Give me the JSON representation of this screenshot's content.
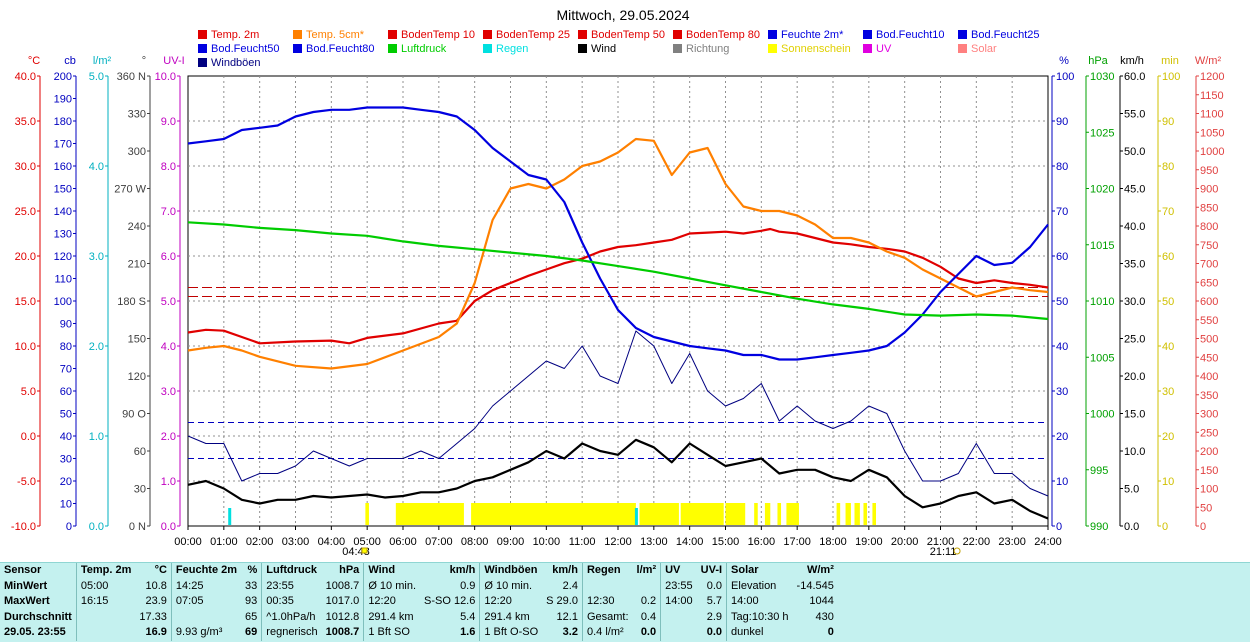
{
  "title": "Mittwoch, 29.05.2024",
  "legend": [
    {
      "label": "Temp. 2m",
      "color": "#e00000"
    },
    {
      "label": "Temp. 5cm*",
      "color": "#ff8000"
    },
    {
      "label": "BodenTemp 10",
      "color": "#e00000"
    },
    {
      "label": "BodenTemp 25",
      "color": "#e00000"
    },
    {
      "label": "BodenTemp 50",
      "color": "#e00000"
    },
    {
      "label": "BodenTemp 80",
      "color": "#e00000"
    },
    {
      "label": "Feuchte 2m*",
      "color": "#0000e0"
    },
    {
      "label": "Bod.Feucht10",
      "color": "#0000e0"
    },
    {
      "label": "Bod.Feucht25",
      "color": "#0000e0"
    },
    {
      "label": "Bod.Feucht50",
      "color": "#0000e0"
    },
    {
      "label": "Bod.Feucht80",
      "color": "#0000e0"
    },
    {
      "label": "Luftdruck",
      "color": "#00cc00"
    },
    {
      "label": "Regen",
      "color": "#00e0e0"
    },
    {
      "label": "Wind",
      "color": "#000000"
    },
    {
      "label": "Richtung",
      "color": "#808080"
    },
    {
      "label": "Sonnenschein",
      "color": "#ffff00"
    },
    {
      "label": "UV",
      "color": "#e000e0"
    },
    {
      "label": "Solar",
      "color": "#ff8080"
    },
    {
      "label": "Windböen",
      "color": "#000080"
    }
  ],
  "axes_left": [
    {
      "unit": "°C",
      "color": "#e00000",
      "ticks": [
        "40.0",
        "35.0",
        "30.0",
        "25.0",
        "20.0",
        "15.0",
        "10.0",
        "5.0",
        "0.0",
        "-5.0",
        "-10.0"
      ]
    },
    {
      "unit": "cb",
      "color": "#0000c0",
      "ticks": [
        "200",
        "190",
        "180",
        "170",
        "160",
        "150",
        "140",
        "130",
        "120",
        "110",
        "100",
        "90",
        "80",
        "70",
        "60",
        "50",
        "40",
        "30",
        "20",
        "10",
        "0"
      ]
    },
    {
      "unit": "l/m²",
      "color": "#00b0c0",
      "ticks": [
        "5.0",
        "4.0",
        "3.0",
        "2.0",
        "1.0",
        "0.0"
      ]
    },
    {
      "unit": "°",
      "color": "#404040",
      "ticks": [
        "360 N",
        "330",
        "300",
        "270 W",
        "240",
        "210",
        "180 S",
        "150",
        "120",
        "90 O",
        "60",
        "30",
        "0 N"
      ]
    },
    {
      "unit": "UV-I",
      "color": "#c000c0",
      "ticks": [
        "10.0",
        "9.0",
        "8.0",
        "7.0",
        "6.0",
        "5.0",
        "4.0",
        "3.0",
        "2.0",
        "1.0",
        "0.0"
      ]
    }
  ],
  "axes_right": [
    {
      "unit": "%",
      "color": "#0000c0",
      "ticks": [
        "100",
        "90",
        "80",
        "70",
        "60",
        "50",
        "40",
        "30",
        "20",
        "10",
        "0"
      ]
    },
    {
      "unit": "hPa",
      "color": "#00a000",
      "ticks": [
        "1030",
        "1025",
        "1020",
        "1015",
        "1010",
        "1005",
        "1000",
        "995",
        "990"
      ]
    },
    {
      "unit": "km/h",
      "color": "#000000",
      "ticks": [
        "60.0",
        "55.0",
        "50.0",
        "45.0",
        "40.0",
        "35.0",
        "30.0",
        "25.0",
        "20.0",
        "15.0",
        "10.0",
        "5.0",
        "0.0"
      ]
    },
    {
      "unit": "min",
      "color": "#d0c000",
      "ticks": [
        "100",
        "90",
        "80",
        "70",
        "60",
        "50",
        "40",
        "30",
        "20",
        "10",
        "0"
      ]
    },
    {
      "unit": "W/m²",
      "color": "#e04040",
      "ticks": [
        "1200",
        "1150",
        "1100",
        "1050",
        "1000",
        "950",
        "900",
        "850",
        "800",
        "750",
        "700",
        "650",
        "600",
        "550",
        "500",
        "450",
        "400",
        "350",
        "300",
        "250",
        "200",
        "150",
        "100",
        "50",
        "0"
      ]
    }
  ],
  "x_ticks": [
    "00:00",
    "01:00",
    "02:00",
    "03:00",
    "04:00",
    "05:00",
    "06:00",
    "07:00",
    "08:00",
    "09:00",
    "10:00",
    "11:00",
    "12:00",
    "13:00",
    "14:00",
    "15:00",
    "16:00",
    "17:00",
    "18:00",
    "19:00",
    "20:00",
    "21:00",
    "22:00",
    "23:00",
    "24:00"
  ],
  "sunrise": "04:48",
  "sunset": "21:11",
  "chart_data": {
    "type": "line",
    "title": "Mittwoch, 29.05.2024",
    "x_unit": "hours",
    "xlim": [
      0,
      24
    ],
    "series": [
      {
        "name": "Temp. 2m",
        "color": "#e00000",
        "unit": "°C",
        "x": [
          0,
          0.5,
          1,
          1.5,
          2,
          3,
          4,
          4.5,
          5,
          6,
          7,
          7.5,
          8,
          8.5,
          9,
          9.5,
          10,
          10.5,
          11,
          11.5,
          12,
          12.5,
          13,
          13.5,
          14,
          14.5,
          15,
          15.5,
          16,
          16.25,
          16.5,
          17,
          17.5,
          18,
          18.5,
          19,
          19.5,
          20,
          20.5,
          21,
          21.5,
          22,
          22.5,
          23,
          23.5,
          24
        ],
        "y": [
          11.5,
          11.8,
          11.7,
          11.0,
          10.3,
          10.5,
          10.6,
          10.3,
          10.9,
          11.4,
          12.5,
          12.8,
          15.0,
          16.2,
          17.0,
          17.8,
          18.5,
          19.2,
          19.7,
          20.5,
          21.0,
          21.2,
          21.5,
          21.8,
          22.5,
          22.6,
          22.7,
          22.5,
          22.8,
          23.0,
          22.7,
          22.5,
          22.0,
          21.5,
          21.3,
          21.0,
          20.8,
          20.5,
          19.8,
          18.8,
          17.5,
          17.0,
          17.3,
          17.0,
          16.8,
          16.5
        ]
      },
      {
        "name": "Temp. 5cm*",
        "color": "#ff8000",
        "unit": "°C",
        "x": [
          0,
          0.5,
          1,
          1.5,
          2,
          3,
          4,
          5,
          6,
          7,
          7.5,
          8,
          8.5,
          9,
          9.5,
          10,
          10.5,
          11,
          11.5,
          12,
          12.5,
          13,
          13.5,
          14,
          14.5,
          15,
          15.5,
          16,
          16.5,
          17,
          17.5,
          18,
          18.5,
          19,
          19.5,
          20,
          20.5,
          21,
          21.5,
          22,
          22.5,
          23,
          23.5,
          24
        ],
        "y": [
          9.5,
          9.8,
          10.0,
          9.5,
          8.8,
          7.8,
          7.5,
          8.0,
          9.5,
          11.0,
          12.5,
          17.0,
          24.0,
          27.5,
          28.0,
          27.5,
          28.5,
          30.0,
          30.5,
          31.5,
          33.0,
          32.8,
          29.0,
          31.5,
          32.0,
          28.0,
          25.5,
          25.0,
          25.0,
          24.5,
          23.5,
          22.0,
          22.0,
          21.5,
          20.5,
          19.8,
          18.5,
          17.5,
          16.5,
          15.5,
          16.0,
          16.5,
          16.2,
          16.0
        ]
      },
      {
        "name": "Feuchte 2m*",
        "color": "#0000e0",
        "unit": "%",
        "x": [
          0,
          0.5,
          1,
          1.5,
          2,
          2.5,
          3,
          3.5,
          4,
          4.5,
          5,
          5.5,
          6,
          6.5,
          7,
          7.5,
          8,
          8.5,
          9,
          9.5,
          10,
          10.5,
          11,
          11.5,
          12,
          12.5,
          13,
          13.5,
          14,
          14.5,
          15,
          15.5,
          16,
          16.5,
          17,
          17.5,
          18,
          18.5,
          19,
          19.5,
          20,
          20.5,
          21,
          21.5,
          22,
          22.5,
          23,
          23.5,
          24
        ],
        "y": [
          85,
          85.5,
          86,
          88,
          88.5,
          89,
          91,
          92,
          92.5,
          92.5,
          93,
          93,
          93,
          92.5,
          92,
          91,
          88,
          84,
          81,
          78,
          77,
          72,
          63,
          55,
          48,
          44,
          42,
          41,
          40,
          39.5,
          39,
          38,
          38,
          37,
          37,
          37.5,
          38,
          38.5,
          39,
          40,
          43,
          47,
          52,
          56,
          60,
          58,
          58.5,
          62,
          67
        ]
      },
      {
        "name": "Luftdruck",
        "color": "#00cc00",
        "unit": "hPa",
        "x": [
          0,
          1,
          2,
          3,
          4,
          5,
          6,
          7,
          8,
          9,
          10,
          11,
          12,
          13,
          14,
          15,
          16,
          17,
          18,
          19,
          20,
          21,
          22,
          23,
          24
        ],
        "y": [
          1017.0,
          1016.8,
          1016.5,
          1016.3,
          1016.0,
          1015.8,
          1015.3,
          1014.9,
          1014.6,
          1014.3,
          1014.0,
          1013.6,
          1013.1,
          1012.6,
          1012.0,
          1011.4,
          1010.8,
          1010.2,
          1009.7,
          1009.3,
          1008.8,
          1008.7,
          1008.8,
          1008.7,
          1008.4
        ]
      },
      {
        "name": "Wind",
        "color": "#000000",
        "unit": "km/h",
        "x": [
          0,
          0.5,
          1,
          1.5,
          2,
          2.5,
          3,
          3.5,
          4,
          4.5,
          5,
          5.5,
          6,
          6.5,
          7,
          7.5,
          8,
          8.5,
          9,
          9.5,
          10,
          10.5,
          11,
          11.5,
          12,
          12.5,
          13,
          13.5,
          14,
          14.5,
          15,
          15.5,
          16,
          16.5,
          17,
          17.5,
          18,
          18.5,
          19,
          19.5,
          20,
          20.5,
          21,
          21.5,
          22,
          22.5,
          23,
          23.5,
          24
        ],
        "y": [
          5.5,
          6.0,
          5.0,
          3.5,
          3.0,
          3.5,
          3.5,
          4.0,
          3.8,
          4.0,
          4.2,
          3.8,
          4.0,
          4.5,
          4.5,
          5.0,
          6.0,
          6.5,
          7.5,
          8.5,
          10.0,
          9.0,
          11.0,
          10.0,
          9.5,
          11.5,
          10.5,
          8.5,
          11.0,
          9.5,
          8.0,
          8.5,
          9.0,
          7.0,
          7.5,
          7.5,
          6.5,
          6.0,
          7.5,
          6.5,
          4.0,
          2.5,
          3.0,
          4.0,
          4.5,
          3.0,
          3.5,
          2.0,
          1.0
        ]
      },
      {
        "name": "Windböen",
        "color": "#000080",
        "unit": "km/h",
        "x": [
          0,
          0.5,
          1,
          1.5,
          2,
          2.5,
          3,
          3.5,
          4,
          4.5,
          5,
          5.5,
          6,
          6.5,
          7,
          7.5,
          8,
          8.5,
          9,
          9.5,
          10,
          10.5,
          11,
          11.5,
          12,
          12.5,
          13,
          13.5,
          14,
          14.5,
          15,
          15.5,
          16,
          16.5,
          17,
          17.5,
          18,
          18.5,
          19,
          19.5,
          20,
          20.5,
          21,
          21.5,
          22,
          22.5,
          23,
          23.5,
          24
        ],
        "y": [
          12,
          11,
          11,
          6,
          7,
          7,
          8,
          10,
          9,
          8,
          9,
          9,
          9,
          10,
          9,
          11,
          13,
          16,
          18,
          20,
          22,
          21,
          24,
          20,
          19,
          26,
          24,
          19,
          23,
          18,
          16,
          17,
          19,
          14,
          16,
          14,
          13,
          14,
          16,
          15,
          10,
          6,
          6,
          7,
          11,
          7,
          7,
          5,
          4
        ]
      }
    ],
    "sunshine_blocks": [
      [
        4.95,
        5.05
      ],
      [
        5.8,
        7.7
      ],
      [
        7.9,
        12.5
      ],
      [
        12.6,
        13.7
      ],
      [
        13.75,
        14.95
      ],
      [
        15.0,
        15.55
      ],
      [
        15.8,
        15.9
      ],
      [
        16.1,
        16.25
      ],
      [
        16.45,
        16.55
      ],
      [
        16.7,
        17.05
      ],
      [
        18.1,
        18.2
      ],
      [
        18.35,
        18.5
      ],
      [
        18.6,
        18.75
      ],
      [
        18.85,
        18.95
      ],
      [
        19.1,
        19.2
      ]
    ],
    "rain_marks": [
      1.15,
      12.5
    ]
  },
  "stats": {
    "header": [
      "Sensor",
      "Temp. 2m",
      "°C",
      "Feuchte 2m",
      "%",
      "Luftdruck",
      "hPa",
      "Wind",
      "km/h",
      "Windböen",
      "km/h",
      "Regen",
      "l/m²",
      "UV",
      "UV-I",
      "Solar",
      "W/m²"
    ],
    "rows": [
      [
        "MinWert",
        "05:00",
        "10.8",
        "14:25",
        "33",
        "23:55",
        "1008.7",
        "Ø 10 min.",
        "0.9",
        "Ø 10 min.",
        "2.4",
        "",
        "",
        "23:55",
        "0.0",
        "Elevation",
        "-14.545"
      ],
      [
        "MaxWert",
        "16:15",
        "23.9",
        "07:05",
        "93",
        "00:35",
        "1017.0",
        "12:20",
        "S-SO 12.6",
        "12:20",
        "S 29.0",
        "12:30",
        "0.2",
        "14:00",
        "5.7",
        "14:00",
        "1044"
      ],
      [
        "Durchschnitt",
        "",
        "17.33",
        "",
        "65",
        "^1.0hPa/h",
        "1012.8",
        "291.4 km",
        "5.4",
        "291.4 km",
        "12.1",
        "Gesamt:",
        "0.4",
        "",
        "2.9",
        "Tag:10:30 h",
        "430"
      ],
      [
        "29.05. 23:55",
        "",
        "16.9",
        "9.93 g/m³",
        "69",
        "regnerisch",
        "1008.7",
        "1 Bft SO",
        "1.6",
        "1 Bft O-SO",
        "3.2",
        "0.4 l/m²",
        "0.0",
        "",
        "0.0",
        "dunkel",
        "0"
      ]
    ]
  }
}
